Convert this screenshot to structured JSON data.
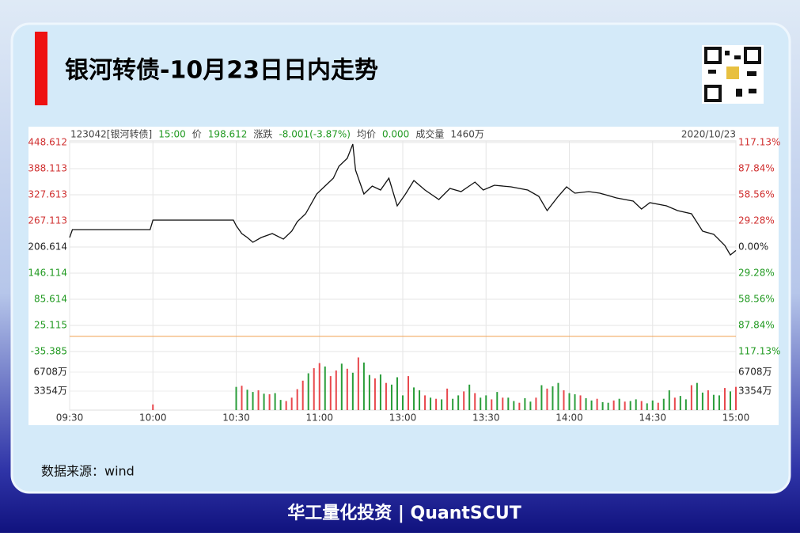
{
  "title": "银河转债-10月23日日内走势",
  "source": "数据来源：wind",
  "footer": "华工量化投资 | QuantSCUT",
  "chart_data": {
    "type": "line",
    "header": {
      "code": "123042[银河转债]",
      "time": "15:00",
      "price_label": "价",
      "price": "198.612",
      "change_label": "涨跌",
      "change": "-8.001(-3.87%)",
      "avg_label": "均价",
      "avg": "0.000",
      "vol_label": "成交量",
      "vol": "1460万",
      "date": "2020/10/23"
    },
    "xlim": [
      0,
      240
    ],
    "xticks": [
      {
        "value": 0,
        "label": "09:30"
      },
      {
        "value": 30,
        "label": "10:00"
      },
      {
        "value": 60,
        "label": "10:30"
      },
      {
        "value": 90,
        "label": "11:00"
      },
      {
        "value": 120,
        "label": "13:00"
      },
      {
        "value": 150,
        "label": "13:30"
      },
      {
        "value": 180,
        "label": "14:00"
      },
      {
        "value": 210,
        "label": "14:30"
      },
      {
        "value": 240,
        "label": "15:00"
      }
    ],
    "ylim": [
      -35.385,
      448.612
    ],
    "yticks": [
      448.612,
      388.113,
      327.613,
      267.113,
      206.614,
      146.114,
      85.614,
      25.115,
      -35.385
    ],
    "ytick_colors": [
      "#d03030",
      "#d03030",
      "#d03030",
      "#d03030",
      "#222222",
      "#229a22",
      "#229a22",
      "#229a22",
      "#229a22"
    ],
    "y2lim": [
      -117.13,
      117.13
    ],
    "y2ticks": [
      {
        "value": 117.13,
        "label": "117.13%"
      },
      {
        "value": 87.84,
        "label": "87.84%"
      },
      {
        "value": 58.56,
        "label": "58.56%"
      },
      {
        "value": 29.28,
        "label": "29.28%"
      },
      {
        "value": 0,
        "label": "0.00%"
      },
      {
        "value": -29.28,
        "label": "29.28%"
      },
      {
        "value": -58.56,
        "label": "58.56%"
      },
      {
        "value": -87.84,
        "label": "87.84%"
      },
      {
        "value": -117.13,
        "label": "117.13%"
      }
    ],
    "y2tick_colors": [
      "#d03030",
      "#d03030",
      "#d03030",
      "#d03030",
      "#222222",
      "#229a22",
      "#229a22",
      "#229a22",
      "#229a22"
    ],
    "avg_line": 0,
    "avg_color": "#f0a050",
    "series": [
      {
        "color": "#111111",
        "x": [
          0,
          1,
          29,
          30,
          59,
          60,
          62,
          64,
          66,
          69,
          73,
          77,
          80,
          82,
          85,
          89,
          92,
          95,
          97,
          100,
          102,
          103,
          106,
          109,
          112,
          115,
          118,
          121,
          124,
          128,
          133,
          137,
          141,
          146,
          149,
          153,
          159,
          165,
          169,
          172,
          176,
          179,
          182,
          187,
          191,
          197,
          203,
          206,
          209,
          215,
          219,
          224,
          228,
          232,
          236,
          238,
          240
        ],
        "values": [
          228.6,
          246.9,
          246.9,
          268.9,
          268.9,
          256.1,
          237.8,
          228.6,
          217.6,
          228.6,
          237.8,
          224.9,
          243.3,
          265.3,
          283.6,
          329.4,
          347.8,
          366.1,
          393.6,
          411.9,
          445.0,
          384.4,
          329.4,
          347.8,
          338.6,
          366.1,
          301.9,
          329.4,
          360.6,
          338.6,
          316.6,
          342.3,
          334.9,
          356.9,
          338.6,
          349.6,
          345.9,
          338.6,
          323.9,
          290.9,
          323.9,
          345.9,
          331.3,
          334.9,
          331.3,
          320.3,
          312.9,
          294.6,
          309.3,
          301.9,
          290.9,
          283.6,
          243.3,
          236.0,
          210.3,
          188.3,
          198.612
        ]
      }
    ],
    "volume": {
      "ylim": [
        0,
        10342
      ],
      "yticks": [
        {
          "value": 6708,
          "label": "6708万"
        },
        {
          "value": 3354,
          "label": "3354万"
        }
      ],
      "x": [
        30,
        60,
        62,
        64,
        66,
        68,
        70,
        72,
        74,
        76,
        78,
        80,
        82,
        84,
        86,
        88,
        90,
        92,
        94,
        96,
        98,
        100,
        102,
        104,
        106,
        108,
        110,
        112,
        114,
        116,
        118,
        120,
        122,
        124,
        126,
        128,
        130,
        132,
        134,
        136,
        138,
        140,
        142,
        144,
        146,
        148,
        150,
        152,
        154,
        156,
        158,
        160,
        162,
        164,
        166,
        168,
        170,
        172,
        174,
        176,
        178,
        180,
        182,
        184,
        186,
        188,
        190,
        192,
        194,
        196,
        198,
        200,
        202,
        204,
        206,
        208,
        210,
        212,
        214,
        216,
        218,
        220,
        222,
        224,
        226,
        228,
        230,
        232,
        234,
        236,
        238,
        240
      ],
      "values": [
        1000,
        4100,
        4300,
        3600,
        3200,
        3500,
        2900,
        2800,
        3000,
        1800,
        1600,
        2200,
        3700,
        5200,
        6500,
        7400,
        8300,
        7700,
        6000,
        7000,
        8200,
        7300,
        6600,
        9300,
        8400,
        6200,
        5600,
        6300,
        4800,
        4500,
        5800,
        2600,
        6000,
        4000,
        3500,
        2600,
        2200,
        2000,
        1900,
        3800,
        2000,
        2600,
        3300,
        4500,
        3000,
        2200,
        2600,
        1900,
        3200,
        2200,
        2200,
        1600,
        1300,
        2100,
        1500,
        2200,
        4400,
        3800,
        4200,
        4800,
        3500,
        3000,
        2800,
        2600,
        2100,
        1700,
        2000,
        1400,
        1300,
        1700,
        2000,
        1500,
        1600,
        1900,
        1600,
        1200,
        1700,
        1300,
        2000,
        3500,
        2200,
        2500,
        1900,
        4400,
        4800,
        3100,
        3500,
        2700,
        2600,
        3900,
        3300,
        4100
      ],
      "colors": [
        "#e8474c",
        "#2a9d3a",
        "#e8474c",
        "#2a9d3a",
        "#2a9d3a",
        "#e8474c",
        "#2a9d3a",
        "#e8474c",
        "#2a9d3a",
        "#2a9d3a",
        "#e8474c",
        "#e8474c",
        "#e8474c",
        "#e8474c",
        "#2a9d3a",
        "#e8474c",
        "#e8474c",
        "#2a9d3a",
        "#e8474c",
        "#e8474c",
        "#2a9d3a",
        "#e8474c",
        "#2a9d3a",
        "#e8474c",
        "#2a9d3a",
        "#2a9d3a",
        "#e8474c",
        "#2a9d3a",
        "#e8474c",
        "#2a9d3a",
        "#2a9d3a",
        "#2a9d3a",
        "#e8474c",
        "#2a9d3a",
        "#2a9d3a",
        "#e8474c",
        "#2a9d3a",
        "#e8474c",
        "#2a9d3a",
        "#e8474c",
        "#2a9d3a",
        "#2a9d3a",
        "#e8474c",
        "#2a9d3a",
        "#e8474c",
        "#2a9d3a",
        "#2a9d3a",
        "#e8474c",
        "#2a9d3a",
        "#e8474c",
        "#2a9d3a",
        "#2a9d3a",
        "#e8474c",
        "#2a9d3a",
        "#2a9d3a",
        "#e8474c",
        "#2a9d3a",
        "#e8474c",
        "#2a9d3a",
        "#2a9d3a",
        "#e8474c",
        "#2a9d3a",
        "#2a9d3a",
        "#e8474c",
        "#2a9d3a",
        "#2a9d3a",
        "#e8474c",
        "#2a9d3a",
        "#2a9d3a",
        "#e8474c",
        "#2a9d3a",
        "#e8474c",
        "#2a9d3a",
        "#2a9d3a",
        "#e8474c",
        "#2a9d3a",
        "#2a9d3a",
        "#e8474c",
        "#2a9d3a",
        "#2a9d3a",
        "#e8474c",
        "#2a9d3a",
        "#2a9d3a",
        "#e8474c",
        "#2a9d3a",
        "#2a9d3a",
        "#e8474c",
        "#2a9d3a",
        "#2a9d3a",
        "#e8474c",
        "#2a9d3a",
        "#e8474c"
      ]
    },
    "grid": true
  }
}
